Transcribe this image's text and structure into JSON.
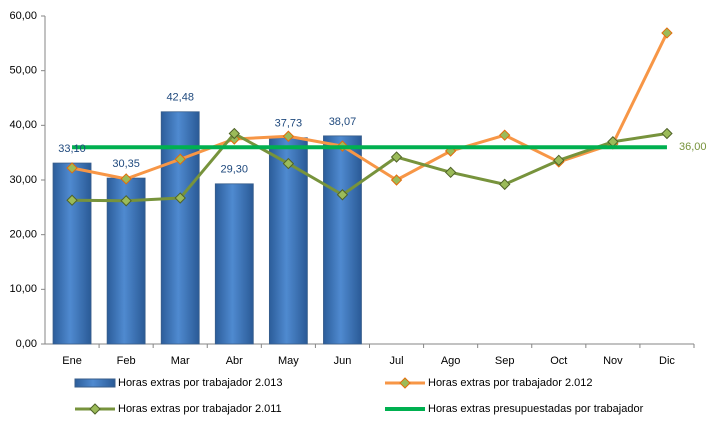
{
  "chart_data": {
    "type": "bar",
    "categories": [
      "Ene",
      "Feb",
      "Mar",
      "Abr",
      "May",
      "Jun",
      "Jul",
      "Ago",
      "Sep",
      "Oct",
      "Nov",
      "Dic"
    ],
    "ylim": [
      0,
      60
    ],
    "yticks": [
      {
        "value": 0,
        "label": "0,00"
      },
      {
        "value": 10,
        "label": "10,00"
      },
      {
        "value": 20,
        "label": "20,00"
      },
      {
        "value": 30,
        "label": "30,00"
      },
      {
        "value": 40,
        "label": "40,00"
      },
      {
        "value": 50,
        "label": "50,00"
      },
      {
        "value": 60,
        "label": "60,00"
      }
    ],
    "grid": false,
    "series": [
      {
        "name": "Horas extras por trabajador 2.013",
        "type": "bar",
        "color": "#4f81bd",
        "values": [
          33.1,
          30.35,
          42.48,
          29.3,
          37.73,
          38.07,
          null,
          null,
          null,
          null,
          null,
          null
        ],
        "value_labels": [
          "33,10",
          "30,35",
          "42,48",
          "29,30",
          "37,73",
          "38,07",
          null,
          null,
          null,
          null,
          null,
          null
        ]
      },
      {
        "name": "Horas extras por trabajador 2.012",
        "type": "line",
        "color": "#f79646",
        "marker": true,
        "values": [
          32.2,
          30.2,
          33.8,
          37.5,
          38.0,
          36.2,
          30.0,
          35.3,
          38.2,
          33.3,
          36.6,
          56.9
        ]
      },
      {
        "name": "Horas extras por trabajador 2.011",
        "type": "line",
        "color": "#77933c",
        "marker": true,
        "values": [
          26.3,
          26.2,
          26.7,
          38.5,
          33.0,
          27.3,
          34.2,
          31.4,
          29.2,
          33.6,
          37.0,
          38.5
        ]
      },
      {
        "name": "Horas extras presupuestadas por trabajador",
        "type": "line",
        "color": "#00b050",
        "marker": false,
        "values": [
          36,
          36,
          36,
          36,
          36,
          36,
          36,
          36,
          36,
          36,
          36,
          36
        ],
        "value_labels": [
          null,
          null,
          null,
          null,
          null,
          null,
          null,
          null,
          null,
          null,
          null,
          "36,00"
        ]
      }
    ]
  }
}
